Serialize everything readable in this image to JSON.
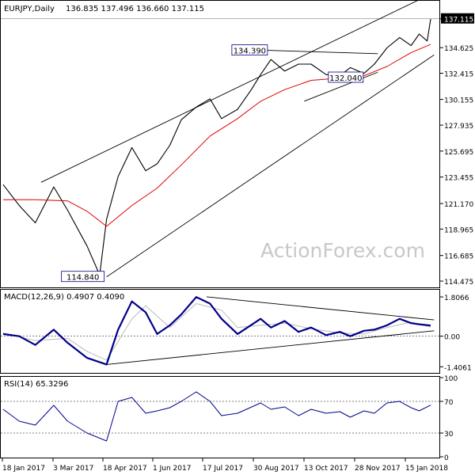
{
  "chart_data": [
    {
      "type": "line",
      "panel": "price",
      "title": "EURJPY,Daily",
      "ohlc_header": "136.835 137.496 136.660 137.115",
      "current_price": "137.115",
      "ylim": [
        114.0,
        138.6
      ],
      "y_ticks": [
        "137.115",
        "134.625",
        "132.415",
        "130.155",
        "127.935",
        "125.695",
        "123.455",
        "121.170",
        "118.965",
        "116.685",
        "114.475"
      ],
      "annotations": [
        {
          "label": "134.390",
          "value": 134.39
        },
        {
          "label": "132.040",
          "value": 132.04
        },
        {
          "label": "114.840",
          "value": 114.84
        }
      ],
      "watermark": "ActionForex.com",
      "series": [
        {
          "name": "",
          "color": "#000000",
          "x": [
            "2017-01-18",
            "2017-02-01",
            "2017-02-15",
            "2017-03-03",
            "2017-03-15",
            "2017-04-01",
            "2017-04-12",
            "2017-04-18",
            "2017-04-28",
            "2017-05-10",
            "2017-05-22",
            "2017-06-01",
            "2017-06-12",
            "2017-06-22",
            "2017-07-05",
            "2017-07-17",
            "2017-07-27",
            "2017-08-10",
            "2017-08-22",
            "2017-08-30",
            "2017-09-08",
            "2017-09-20",
            "2017-10-02",
            "2017-10-13",
            "2017-10-26",
            "2017-11-07",
            "2017-11-16",
            "2017-11-28",
            "2017-12-07",
            "2017-12-18",
            "2017-12-29",
            "2018-01-08",
            "2018-01-15",
            "2018-01-22",
            "2018-01-25"
          ],
          "values": [
            122.8,
            121.0,
            119.5,
            122.6,
            120.6,
            117.5,
            115.0,
            119.8,
            123.5,
            126.0,
            124.0,
            124.6,
            126.2,
            128.4,
            129.5,
            130.2,
            128.5,
            129.3,
            131.0,
            132.3,
            133.6,
            132.6,
            133.2,
            133.2,
            132.3,
            132.2,
            132.9,
            132.4,
            133.2,
            134.6,
            135.5,
            134.8,
            135.8,
            135.2,
            137.1
          ]
        },
        {
          "name": "",
          "color": "#e00000",
          "x": [
            "2017-01-18",
            "2017-02-15",
            "2017-03-15",
            "2017-04-01",
            "2017-04-18",
            "2017-05-10",
            "2017-06-01",
            "2017-06-22",
            "2017-07-17",
            "2017-08-10",
            "2017-08-30",
            "2017-09-20",
            "2017-10-13",
            "2017-11-07",
            "2017-11-28",
            "2017-12-18",
            "2018-01-08",
            "2018-01-25"
          ],
          "values": [
            121.5,
            121.5,
            121.4,
            120.5,
            119.2,
            121.0,
            122.5,
            124.5,
            127.0,
            128.5,
            130.0,
            131.0,
            131.8,
            132.0,
            132.2,
            133.0,
            134.2,
            134.9
          ]
        }
      ]
    },
    {
      "type": "line",
      "panel": "macd",
      "title": "MACD(12,26,9) 0.4907 0.4090",
      "ylim": [
        -1.65,
        2.1
      ],
      "y_ticks": [
        "1.8066",
        "0.00",
        "-1.4061"
      ],
      "series": [
        {
          "name": "",
          "color": "#00008b",
          "x": [
            "2017-01-18",
            "2017-02-01",
            "2017-02-15",
            "2017-03-03",
            "2017-03-15",
            "2017-04-01",
            "2017-04-18",
            "2017-04-28",
            "2017-05-10",
            "2017-05-22",
            "2017-06-01",
            "2017-06-12",
            "2017-06-22",
            "2017-07-05",
            "2017-07-17",
            "2017-07-27",
            "2017-08-10",
            "2017-08-30",
            "2017-09-08",
            "2017-09-20",
            "2017-10-02",
            "2017-10-13",
            "2017-10-26",
            "2017-11-07",
            "2017-11-16",
            "2017-11-28",
            "2017-12-07",
            "2017-12-18",
            "2017-12-29",
            "2018-01-08",
            "2018-01-15",
            "2018-01-25"
          ],
          "values": [
            0.1,
            0.0,
            -0.4,
            0.3,
            -0.3,
            -1.0,
            -1.3,
            0.3,
            1.6,
            1.1,
            0.1,
            0.5,
            1.0,
            1.8,
            1.5,
            0.8,
            0.1,
            0.8,
            0.4,
            0.7,
            0.2,
            0.4,
            0.05,
            0.2,
            0.0,
            0.25,
            0.3,
            0.5,
            0.8,
            0.6,
            0.55,
            0.49
          ]
        },
        {
          "name": "",
          "color": "#bbbbbb",
          "x": [
            "2017-01-18",
            "2017-02-15",
            "2017-03-15",
            "2017-04-01",
            "2017-04-18",
            "2017-05-10",
            "2017-05-22",
            "2017-06-12",
            "2017-07-05",
            "2017-07-27",
            "2017-08-10",
            "2017-08-30",
            "2017-09-20",
            "2017-10-13",
            "2017-11-07",
            "2017-11-28",
            "2017-12-18",
            "2018-01-08",
            "2018-01-25"
          ],
          "values": [
            0.15,
            -0.2,
            -0.1,
            -0.7,
            -1.1,
            0.8,
            1.4,
            0.4,
            1.5,
            1.2,
            0.4,
            0.5,
            0.6,
            0.35,
            0.15,
            0.1,
            0.4,
            0.65,
            0.41
          ]
        }
      ]
    },
    {
      "type": "line",
      "panel": "rsi",
      "title": "RSI(14) 65.3296",
      "ylim": [
        0,
        100
      ],
      "y_ticks": [
        "100",
        "70",
        "30",
        "0"
      ],
      "series": [
        {
          "name": "",
          "color": "#00008b",
          "x": [
            "2017-01-18",
            "2017-02-01",
            "2017-02-15",
            "2017-03-03",
            "2017-03-15",
            "2017-04-01",
            "2017-04-18",
            "2017-04-28",
            "2017-05-10",
            "2017-05-22",
            "2017-06-01",
            "2017-06-12",
            "2017-06-22",
            "2017-07-05",
            "2017-07-17",
            "2017-07-27",
            "2017-08-10",
            "2017-08-30",
            "2017-09-08",
            "2017-09-20",
            "2017-10-02",
            "2017-10-13",
            "2017-10-26",
            "2017-11-07",
            "2017-11-16",
            "2017-11-28",
            "2017-12-07",
            "2017-12-18",
            "2017-12-29",
            "2018-01-08",
            "2018-01-15",
            "2018-01-25"
          ],
          "values": [
            60,
            45,
            40,
            65,
            45,
            30,
            20,
            70,
            75,
            55,
            58,
            62,
            70,
            82,
            70,
            52,
            55,
            68,
            60,
            63,
            52,
            60,
            55,
            57,
            50,
            58,
            55,
            68,
            70,
            62,
            58,
            65.3
          ]
        }
      ]
    }
  ],
  "x_axis_labels": [
    "18 Jan 2017",
    "3 Mar 2017",
    "18 Apr 2017",
    "1 Jun 2017",
    "17 Jul 2017",
    "30 Aug 2017",
    "13 Oct 2017",
    "28 Nov 2017",
    "15 Jan 2018"
  ]
}
